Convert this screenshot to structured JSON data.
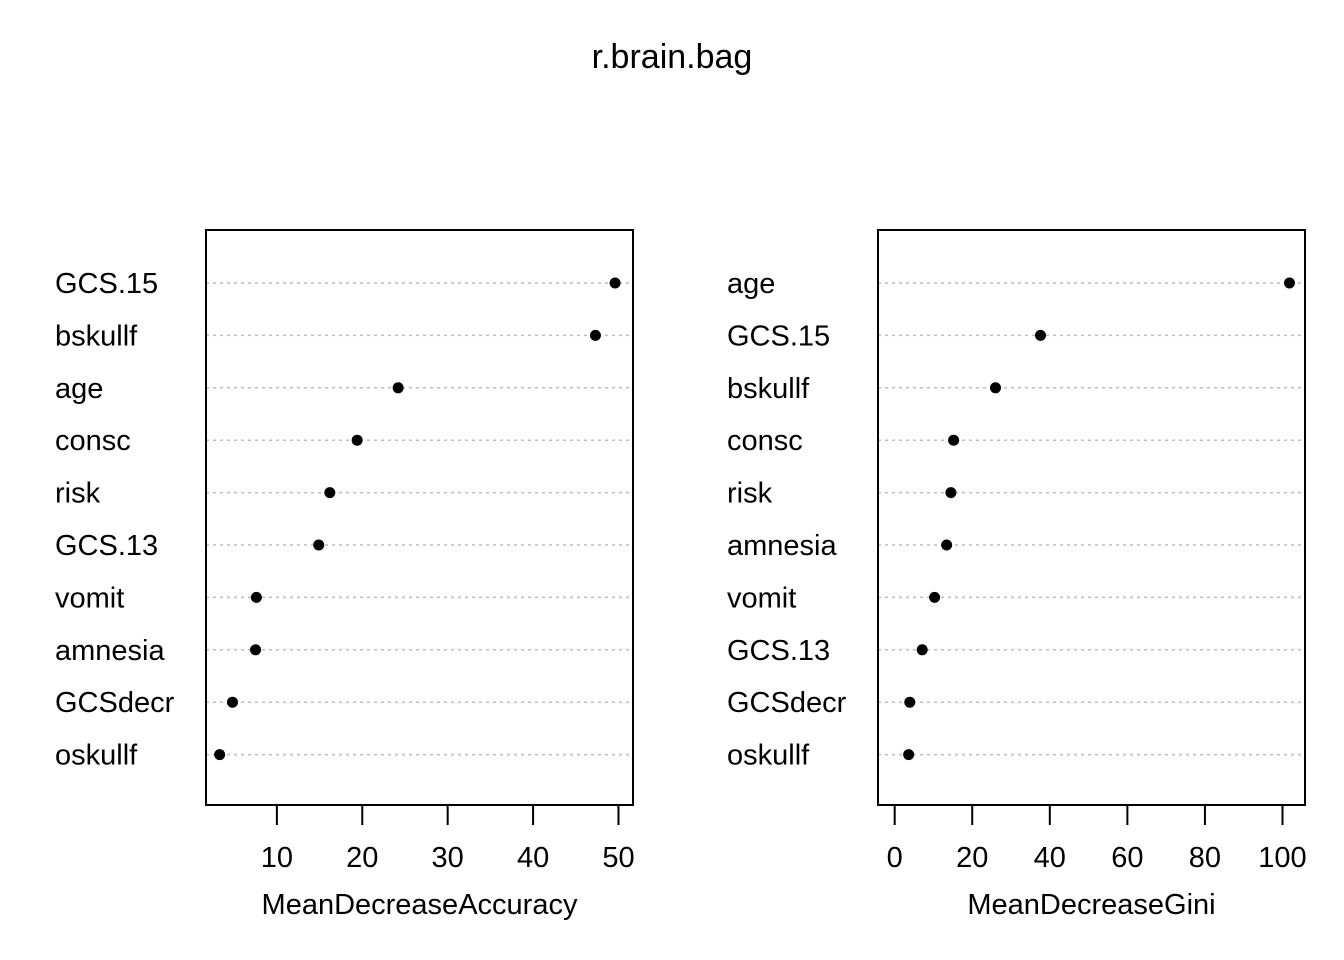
{
  "title": "r.brain.bag",
  "chart_data": [
    {
      "type": "scatter",
      "variant": "dotchart",
      "xlabel": "MeanDecreaseAccuracy",
      "xlim": [
        1.7,
        51.7
      ],
      "xticks": [
        10,
        20,
        30,
        40,
        50
      ],
      "grid": true,
      "categories": [
        "GCS.15",
        "bskullf",
        "age",
        "consc",
        "risk",
        "GCS.13",
        "vomit",
        "amnesia",
        "GCSdecr",
        "oskullf"
      ],
      "values": [
        49.6,
        47.3,
        24.2,
        19.4,
        16.2,
        14.9,
        7.6,
        7.5,
        4.8,
        3.3
      ]
    },
    {
      "type": "scatter",
      "variant": "dotchart",
      "xlabel": "MeanDecreaseGini",
      "xlim": [
        -4.3,
        105.8
      ],
      "xticks": [
        0,
        20,
        40,
        60,
        80,
        100
      ],
      "grid": true,
      "categories": [
        "age",
        "GCS.15",
        "bskullf",
        "consc",
        "risk",
        "amnesia",
        "vomit",
        "GCS.13",
        "GCSdecr",
        "oskullf"
      ],
      "values": [
        101.8,
        37.6,
        26.0,
        15.2,
        14.5,
        13.4,
        10.3,
        7.1,
        3.9,
        3.6
      ]
    }
  ]
}
